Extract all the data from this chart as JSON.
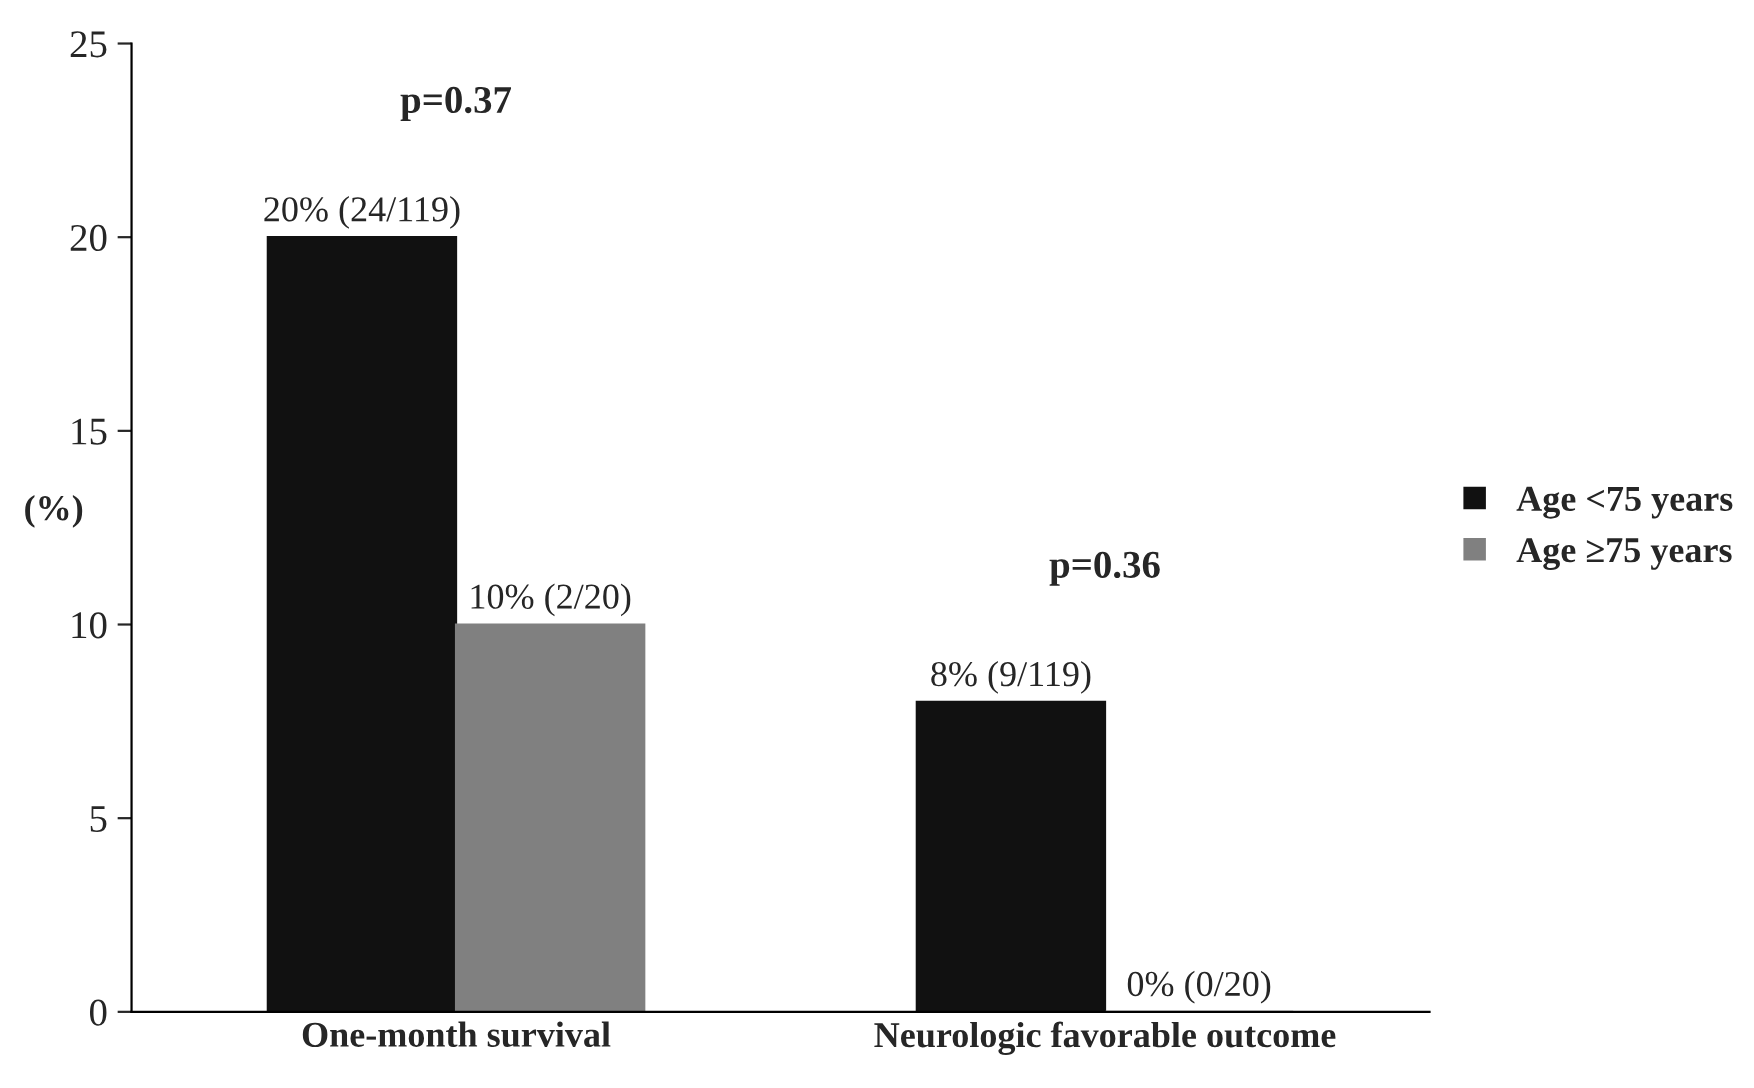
{
  "chart_data": {
    "type": "bar",
    "ylabel": "(%)",
    "categories": [
      "One-month survival",
      "Neurologic favorable outcome"
    ],
    "series": [
      {
        "name": "Age <75 years",
        "color": "#111111",
        "values": [
          20,
          8
        ],
        "value_labels": [
          "20% (24/119)",
          "8% (9/119)"
        ]
      },
      {
        "name": "Age ≥75 years",
        "color": "#808080",
        "values": [
          10,
          0
        ],
        "value_labels": [
          "10% (2/20)",
          "0% (0/20)"
        ]
      }
    ],
    "ylim": [
      0,
      25
    ],
    "yticks": [
      0,
      5,
      10,
      15,
      20,
      25
    ],
    "grid": false,
    "legend": "right",
    "annotations": [
      "p=0.37",
      "p=0.36"
    ]
  }
}
